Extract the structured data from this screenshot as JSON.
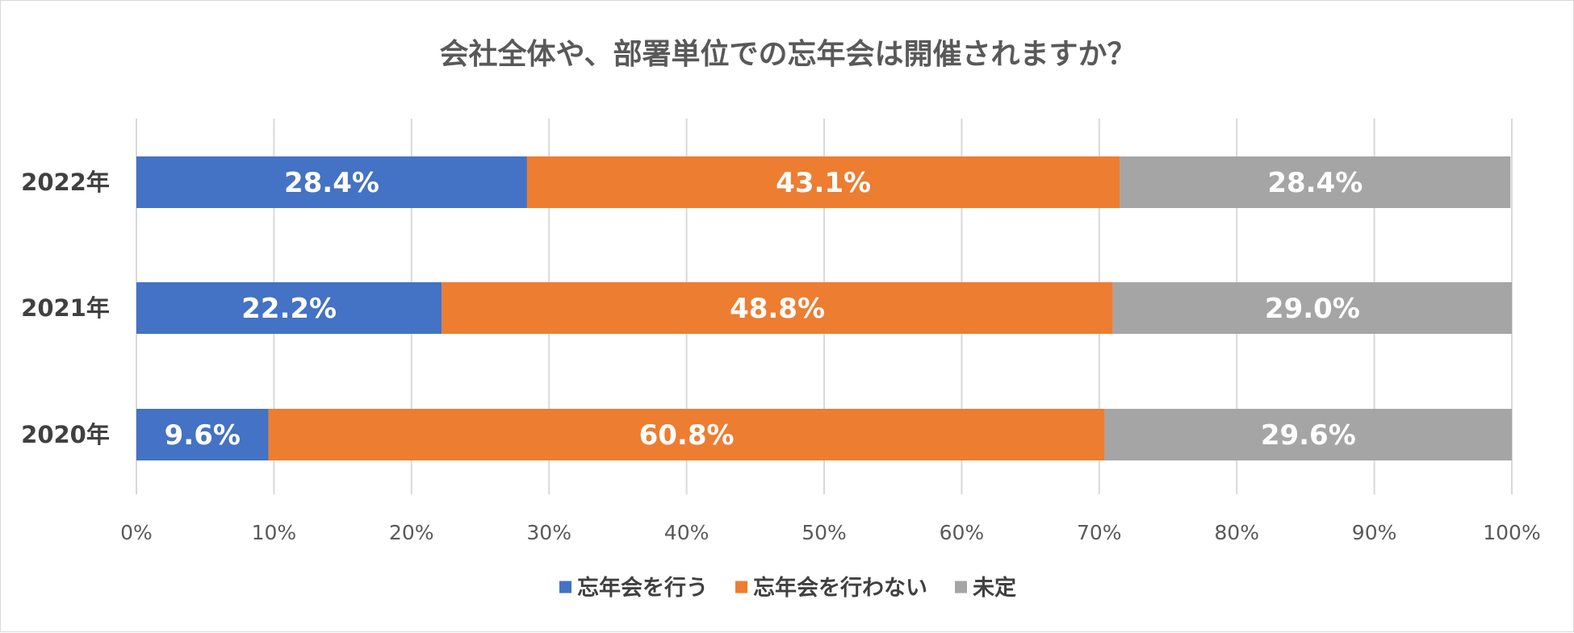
{
  "chart_data": {
    "type": "bar",
    "orientation": "horizontal",
    "stacked": "percent",
    "title": "会社全体や、部署単位での忘年会は開催されますか？",
    "categories": [
      "2022年",
      "2021年",
      "2020年"
    ],
    "series": [
      {
        "name": "忘年会を行う",
        "color": "#4472c4",
        "values": [
          28.4,
          22.2,
          9.6
        ],
        "labels": [
          "28.4%",
          "22.2%",
          "9.6%"
        ]
      },
      {
        "name": "忘年会を行わない",
        "color": "#ed7d31",
        "values": [
          43.1,
          48.8,
          60.8
        ],
        "labels": [
          "43.1%",
          "48.8%",
          "60.8%"
        ]
      },
      {
        "name": "未定",
        "color": "#a5a5a5",
        "values": [
          28.4,
          29.0,
          29.6
        ],
        "labels": [
          "28.4%",
          "29.0%",
          "29.6%"
        ]
      }
    ],
    "xlim": [
      0,
      100
    ],
    "xticks": [
      "0%",
      "10%",
      "20%",
      "30%",
      "40%",
      "50%",
      "60%",
      "70%",
      "80%",
      "90%",
      "100%"
    ],
    "grid": "vertical",
    "legend": "bottom"
  }
}
